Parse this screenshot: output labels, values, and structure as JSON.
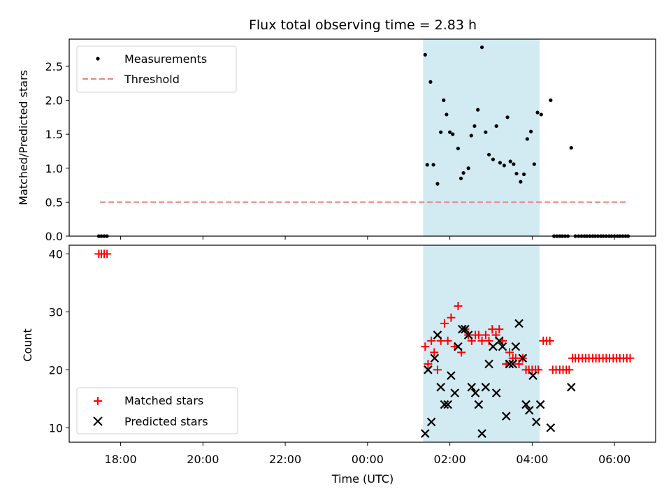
{
  "chart_data": {
    "type": "scatter",
    "title": "Flux total observing time = 2.83 h",
    "xlabel": "Time (UTC)",
    "x_unit": "hours (UTC, continuing past midnight)",
    "x_ticks": [
      {
        "value": 18,
        "label": "18:00"
      },
      {
        "value": 20,
        "label": "20:00"
      },
      {
        "value": 22,
        "label": "22:00"
      },
      {
        "value": 24,
        "label": "00:00"
      },
      {
        "value": 26,
        "label": "02:00"
      },
      {
        "value": 28,
        "label": "04:00"
      },
      {
        "value": 30,
        "label": "06:00"
      }
    ],
    "xlim": [
      16.75,
      31.0
    ],
    "highlight_span": {
      "x_start": 25.35,
      "x_end": 28.18,
      "color": "#add8e6"
    },
    "panels": [
      {
        "ylabel": "Matched/Predicted stars",
        "ylim": [
          0,
          2.9
        ],
        "y_ticks": [
          "0.0",
          "0.5",
          "1.0",
          "1.5",
          "2.0",
          "2.5"
        ],
        "legend": {
          "position": "upper left",
          "entries": [
            "Measurements",
            "Threshold"
          ]
        },
        "threshold": {
          "name": "Threshold",
          "y": 0.5,
          "x_range": [
            17.5,
            30.3
          ],
          "color": "#f08080"
        },
        "series": [
          {
            "name": "Measurements",
            "marker": "dot",
            "color": "#000000",
            "points": [
              [
                17.47,
                0.0
              ],
              [
                17.53,
                0.0
              ],
              [
                17.6,
                0.0
              ],
              [
                17.67,
                0.0
              ],
              [
                25.4,
                2.67
              ],
              [
                25.45,
                1.05
              ],
              [
                25.53,
                2.27
              ],
              [
                25.6,
                1.05
              ],
              [
                25.7,
                0.77
              ],
              [
                25.78,
                1.53
              ],
              [
                25.85,
                2.0
              ],
              [
                25.92,
                1.79
              ],
              [
                26.0,
                1.53
              ],
              [
                26.07,
                1.5
              ],
              [
                26.2,
                1.29
              ],
              [
                26.27,
                0.85
              ],
              [
                26.33,
                0.93
              ],
              [
                26.45,
                1.0
              ],
              [
                26.52,
                1.48
              ],
              [
                26.6,
                1.62
              ],
              [
                26.68,
                1.86
              ],
              [
                26.78,
                2.78
              ],
              [
                26.87,
                1.53
              ],
              [
                26.95,
                1.2
              ],
              [
                27.05,
                1.13
              ],
              [
                27.13,
                1.62
              ],
              [
                27.22,
                1.08
              ],
              [
                27.32,
                1.04
              ],
              [
                27.4,
                1.75
              ],
              [
                27.47,
                1.1
              ],
              [
                27.55,
                1.06
              ],
              [
                27.62,
                0.92
              ],
              [
                27.72,
                0.8
              ],
              [
                27.8,
                0.91
              ],
              [
                27.88,
                1.43
              ],
              [
                27.97,
                1.54
              ],
              [
                28.05,
                1.06
              ],
              [
                28.13,
                1.82
              ],
              [
                28.22,
                1.79
              ],
              [
                28.45,
                2.0
              ],
              [
                28.53,
                0.0
              ],
              [
                28.6,
                0.0
              ],
              [
                28.67,
                0.0
              ],
              [
                28.73,
                0.0
              ],
              [
                28.8,
                0.0
              ],
              [
                28.87,
                0.0
              ],
              [
                28.95,
                1.3
              ],
              [
                29.05,
                0.0
              ],
              [
                29.13,
                0.0
              ],
              [
                29.2,
                0.0
              ],
              [
                29.27,
                0.0
              ],
              [
                29.33,
                0.0
              ],
              [
                29.4,
                0.0
              ],
              [
                29.47,
                0.0
              ],
              [
                29.53,
                0.0
              ],
              [
                29.6,
                0.0
              ],
              [
                29.67,
                0.0
              ],
              [
                29.73,
                0.0
              ],
              [
                29.8,
                0.0
              ],
              [
                29.87,
                0.0
              ],
              [
                29.93,
                0.0
              ],
              [
                30.0,
                0.0
              ],
              [
                30.07,
                0.0
              ],
              [
                30.13,
                0.0
              ],
              [
                30.2,
                0.0
              ],
              [
                30.27,
                0.0
              ],
              [
                30.33,
                0.0
              ]
            ]
          }
        ]
      },
      {
        "ylabel": "Count",
        "ylim": [
          7.5,
          41.5
        ],
        "y_ticks": [
          "10",
          "20",
          "30",
          "40"
        ],
        "legend": {
          "position": "lower left",
          "entries": [
            "Matched stars",
            "Predicted stars"
          ]
        },
        "series": [
          {
            "name": "Matched stars",
            "marker": "plus",
            "color": "#ff0000",
            "points": [
              [
                17.47,
                40
              ],
              [
                17.53,
                40
              ],
              [
                17.6,
                40
              ],
              [
                17.67,
                40
              ],
              [
                25.4,
                24
              ],
              [
                25.47,
                21
              ],
              [
                25.55,
                25
              ],
              [
                25.62,
                23
              ],
              [
                25.7,
                20
              ],
              [
                25.78,
                25
              ],
              [
                25.87,
                28
              ],
              [
                25.95,
                25
              ],
              [
                26.03,
                29
              ],
              [
                26.12,
                24
              ],
              [
                26.2,
                31
              ],
              [
                26.28,
                23
              ],
              [
                26.37,
                27
              ],
              [
                26.45,
                26
              ],
              [
                26.53,
                25
              ],
              [
                26.62,
                26
              ],
              [
                26.7,
                26
              ],
              [
                26.78,
                25
              ],
              [
                26.87,
                26
              ],
              [
                26.95,
                25
              ],
              [
                27.03,
                27
              ],
              [
                27.12,
                26
              ],
              [
                27.2,
                27
              ],
              [
                27.28,
                25
              ],
              [
                27.37,
                21
              ],
              [
                27.45,
                23
              ],
              [
                27.53,
                22
              ],
              [
                27.6,
                22
              ],
              [
                27.68,
                21
              ],
              [
                27.77,
                22
              ],
              [
                27.85,
                20
              ],
              [
                27.92,
                20
              ],
              [
                28.0,
                20
              ],
              [
                28.08,
                20
              ],
              [
                28.15,
                20
              ],
              [
                28.27,
                25
              ],
              [
                28.35,
                25
              ],
              [
                28.43,
                25
              ],
              [
                28.5,
                20
              ],
              [
                28.58,
                20
              ],
              [
                28.67,
                20
              ],
              [
                28.75,
                20
              ],
              [
                28.83,
                20
              ],
              [
                28.9,
                20
              ],
              [
                28.98,
                22
              ],
              [
                29.05,
                22
              ],
              [
                29.13,
                22
              ],
              [
                29.22,
                22
              ],
              [
                29.3,
                22
              ],
              [
                29.38,
                22
              ],
              [
                29.47,
                22
              ],
              [
                29.55,
                22
              ],
              [
                29.63,
                22
              ],
              [
                29.72,
                22
              ],
              [
                29.8,
                22
              ],
              [
                29.88,
                22
              ],
              [
                29.97,
                22
              ],
              [
                30.05,
                22
              ],
              [
                30.13,
                22
              ],
              [
                30.22,
                22
              ],
              [
                30.3,
                22
              ],
              [
                30.38,
                22
              ]
            ]
          },
          {
            "name": "Predicted stars",
            "marker": "x",
            "color": "#000000",
            "points": [
              [
                25.4,
                9
              ],
              [
                25.47,
                20
              ],
              [
                25.55,
                11
              ],
              [
                25.63,
                22
              ],
              [
                25.7,
                26
              ],
              [
                25.78,
                17
              ],
              [
                25.87,
                14
              ],
              [
                25.95,
                14
              ],
              [
                26.03,
                19
              ],
              [
                26.12,
                16
              ],
              [
                26.2,
                24
              ],
              [
                26.3,
                27
              ],
              [
                26.37,
                27
              ],
              [
                26.45,
                26
              ],
              [
                26.53,
                17
              ],
              [
                26.62,
                16
              ],
              [
                26.7,
                14
              ],
              [
                26.78,
                9
              ],
              [
                26.87,
                17
              ],
              [
                26.95,
                21
              ],
              [
                27.05,
                24
              ],
              [
                27.13,
                16
              ],
              [
                27.2,
                25
              ],
              [
                27.28,
                24
              ],
              [
                27.37,
                12
              ],
              [
                27.45,
                21
              ],
              [
                27.53,
                21
              ],
              [
                27.6,
                24
              ],
              [
                27.68,
                28
              ],
              [
                27.77,
                22
              ],
              [
                27.85,
                14
              ],
              [
                27.93,
                13
              ],
              [
                28.02,
                19
              ],
              [
                28.1,
                11
              ],
              [
                28.2,
                14
              ],
              [
                28.45,
                10
              ],
              [
                28.95,
                17
              ]
            ]
          }
        ]
      }
    ]
  }
}
